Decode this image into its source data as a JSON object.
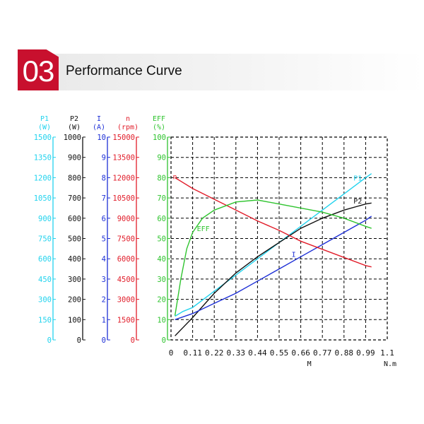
{
  "header": {
    "badge": "03",
    "title": "Performance Curve"
  },
  "colors": {
    "P1": "#22d3ee",
    "P2": "#111111",
    "I": "#1d2fd6",
    "n": "#e11d2a",
    "EFF": "#2fc42f",
    "accent": "#c8102e"
  },
  "chart_data": {
    "type": "line",
    "title": "",
    "grid": "dashed",
    "xlabel": "M",
    "xunit": "N.m",
    "xlim": [
      0,
      1.1
    ],
    "xticks": [
      "0",
      "0.11",
      "0.22",
      "0.33",
      "0.44",
      "0.55",
      "0.66",
      "0.77",
      "0.88",
      "0.99",
      "1.1"
    ],
    "y_axes": [
      {
        "name": "P1",
        "unit": "(W)",
        "color": "#22d3ee",
        "range": [
          0,
          1500
        ],
        "ticks": [
          "0",
          "150",
          "300",
          "450",
          "600",
          "750",
          "900",
          "1050",
          "1200",
          "1350",
          "1500"
        ]
      },
      {
        "name": "P2",
        "unit": "(W)",
        "color": "#111111",
        "range": [
          0,
          1000
        ],
        "ticks": [
          "0",
          "100",
          "200",
          "300",
          "400",
          "500",
          "600",
          "700",
          "800",
          "900",
          "1000"
        ]
      },
      {
        "name": "I",
        "unit": "(A)",
        "color": "#1d2fd6",
        "range": [
          0,
          10
        ],
        "ticks": [
          "0",
          "1",
          "2",
          "3",
          "4",
          "5",
          "6",
          "7",
          "8",
          "9",
          "10"
        ]
      },
      {
        "name": "n",
        "unit": "(rpm)",
        "color": "#e11d2a",
        "range": [
          0,
          15000
        ],
        "ticks": [
          "0",
          "1500",
          "3000",
          "4500",
          "6000",
          "7500",
          "9000",
          "10500",
          "12000",
          "13500",
          "15000"
        ]
      },
      {
        "name": "EFF",
        "unit": "(%)",
        "color": "#2fc42f",
        "range": [
          0,
          100
        ],
        "ticks": [
          "0",
          "10",
          "20",
          "30",
          "40",
          "50",
          "60",
          "70",
          "80",
          "90",
          "100"
        ]
      }
    ],
    "series": [
      {
        "name": "P1",
        "label": "P1",
        "color": "#22d3ee",
        "points": [
          [
            0.02,
            175
          ],
          [
            0.06,
            210
          ],
          [
            0.11,
            240
          ],
          [
            0.22,
            360
          ],
          [
            0.33,
            480
          ],
          [
            0.44,
            600
          ],
          [
            0.55,
            720
          ],
          [
            0.66,
            840
          ],
          [
            0.77,
            960
          ],
          [
            0.88,
            1080
          ],
          [
            0.99,
            1200
          ],
          [
            1.02,
            1230
          ]
        ]
      },
      {
        "name": "P2",
        "label": "P2",
        "color": "#111111",
        "points": [
          [
            0.02,
            20
          ],
          [
            0.06,
            60
          ],
          [
            0.11,
            110
          ],
          [
            0.22,
            230
          ],
          [
            0.33,
            330
          ],
          [
            0.44,
            410
          ],
          [
            0.55,
            480
          ],
          [
            0.66,
            550
          ],
          [
            0.77,
            600
          ],
          [
            0.88,
            640
          ],
          [
            0.99,
            670
          ],
          [
            1.02,
            675
          ]
        ]
      },
      {
        "name": "I",
        "label": "I",
        "color": "#1d2fd6",
        "points": [
          [
            0.02,
            1.0
          ],
          [
            0.11,
            1.3
          ],
          [
            0.22,
            1.8
          ],
          [
            0.33,
            2.3
          ],
          [
            0.44,
            2.9
          ],
          [
            0.55,
            3.5
          ],
          [
            0.66,
            4.1
          ],
          [
            0.77,
            4.7
          ],
          [
            0.88,
            5.3
          ],
          [
            0.99,
            5.9
          ],
          [
            1.02,
            6.1
          ]
        ]
      },
      {
        "name": "n",
        "label": "n",
        "color": "#e11d2a",
        "points": [
          [
            0.02,
            12000
          ],
          [
            0.11,
            11200
          ],
          [
            0.22,
            10400
          ],
          [
            0.33,
            9600
          ],
          [
            0.44,
            8800
          ],
          [
            0.55,
            8100
          ],
          [
            0.66,
            7300
          ],
          [
            0.77,
            6700
          ],
          [
            0.88,
            6100
          ],
          [
            0.99,
            5500
          ],
          [
            1.02,
            5400
          ]
        ]
      },
      {
        "name": "EFF",
        "label": "EFF",
        "color": "#2fc42f",
        "points": [
          [
            0.02,
            12
          ],
          [
            0.05,
            30
          ],
          [
            0.08,
            45
          ],
          [
            0.11,
            53
          ],
          [
            0.16,
            60
          ],
          [
            0.22,
            64
          ],
          [
            0.33,
            68
          ],
          [
            0.44,
            69
          ],
          [
            0.55,
            67
          ],
          [
            0.66,
            65
          ],
          [
            0.77,
            63
          ],
          [
            0.88,
            60
          ],
          [
            0.99,
            56
          ],
          [
            1.02,
            55
          ]
        ]
      }
    ]
  }
}
